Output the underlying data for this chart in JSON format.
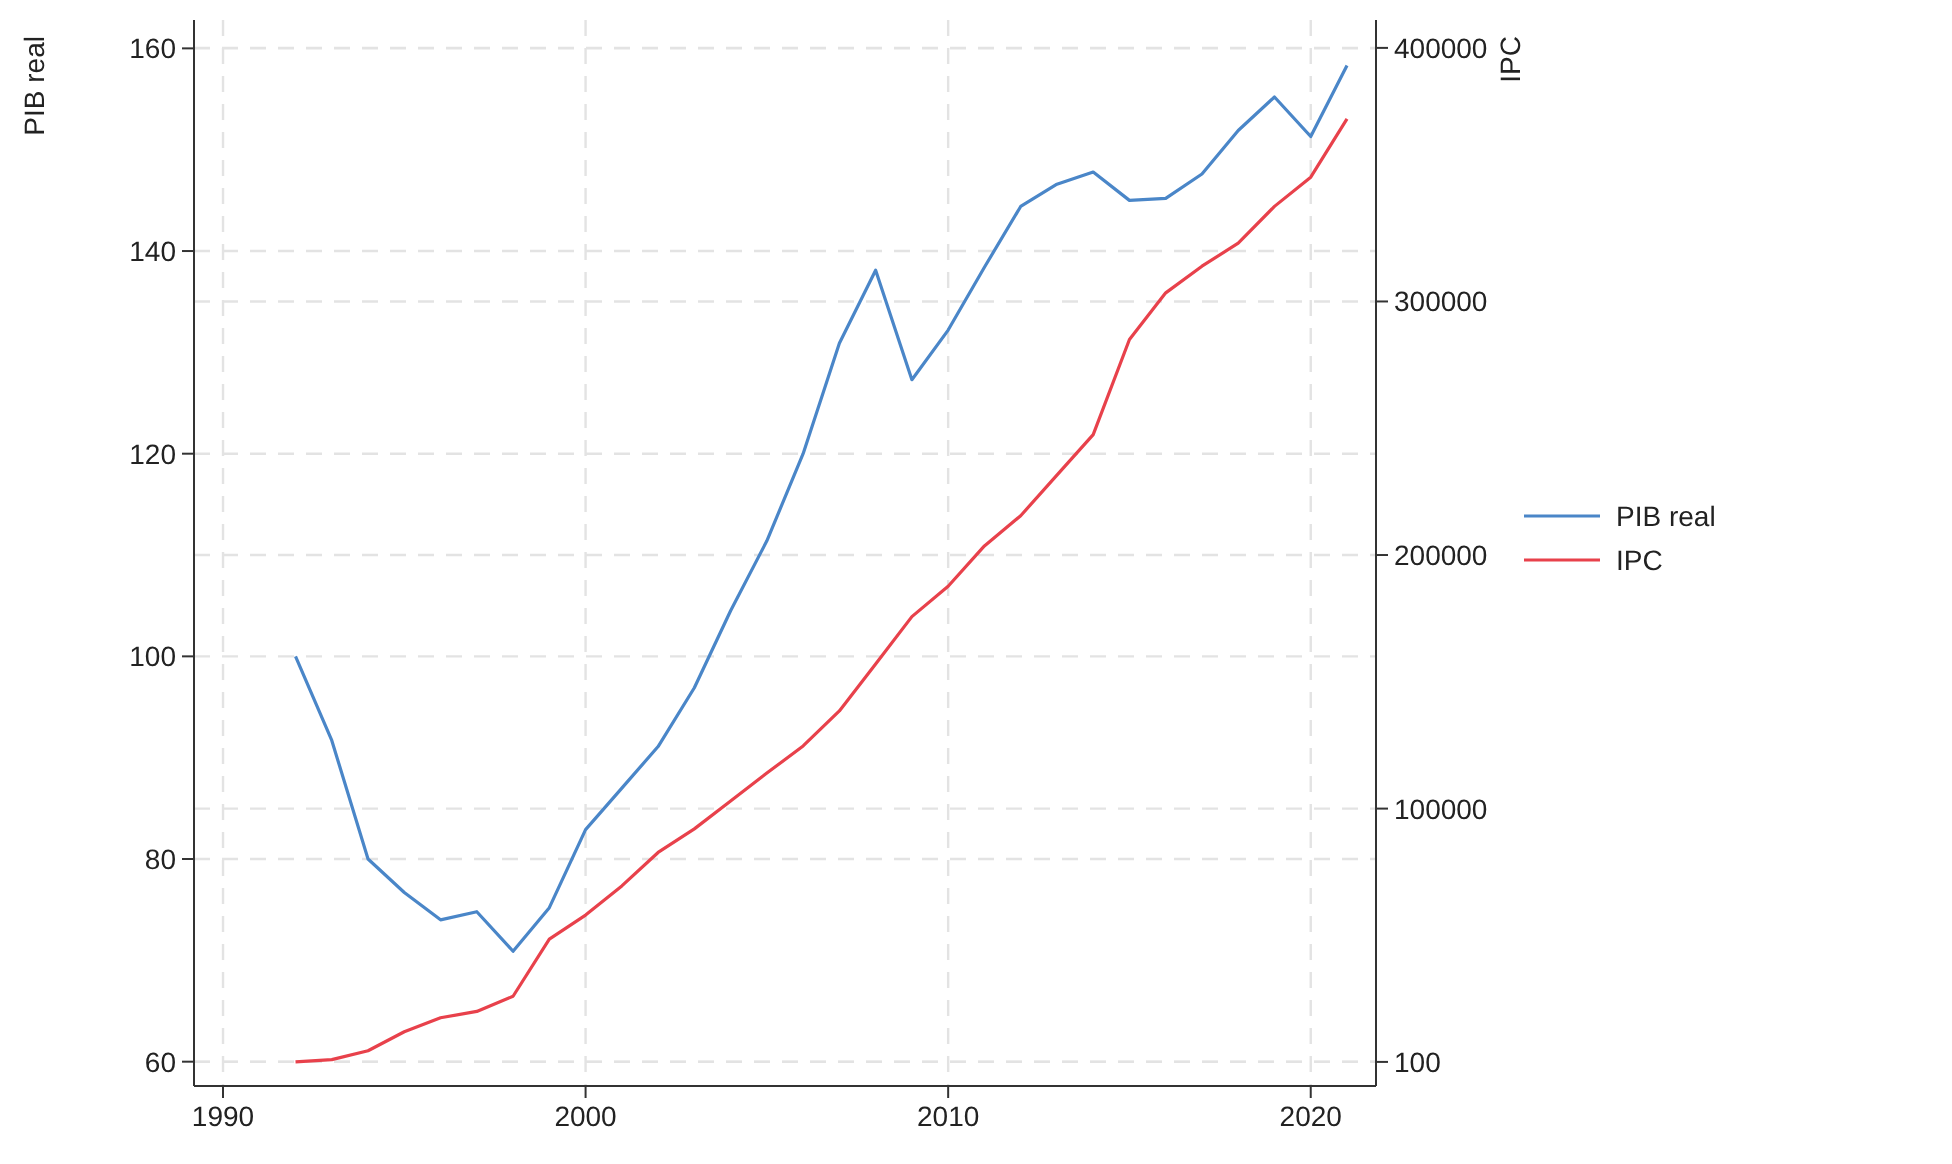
{
  "chart_data": {
    "type": "line",
    "ylabel": "PIB real",
    "y2label": "IPC",
    "x": [
      1992,
      1993,
      1994,
      1995,
      1996,
      1997,
      1998,
      1999,
      2000,
      2001,
      2002,
      2003,
      2004,
      2005,
      2006,
      2007,
      2008,
      2009,
      2010,
      2011,
      2012,
      2013,
      2014,
      2015,
      2016,
      2017,
      2018,
      2019,
      2020,
      2021
    ],
    "series": [
      {
        "name": "PIB real",
        "color": "#4a86c8",
        "values": [
          100,
          91.7,
          80,
          76.7,
          74,
          74.8,
          70.9,
          75.2,
          82.9,
          87,
          91.1,
          96.9,
          104.5,
          111.4,
          120,
          130.9,
          138.1,
          127.3,
          132.2,
          138.4,
          144.4,
          146.6,
          147.8,
          145,
          145.2,
          147.6,
          151.9,
          155.2,
          151.3,
          158.3
        ]
      },
      {
        "name": "IPC",
        "color": "#e8414b",
        "axis": "y2",
        "values": [
          100,
          1000,
          4500,
          12000,
          17500,
          20000,
          26000,
          48500,
          58000,
          69500,
          82700,
          92000,
          103000,
          114000,
          124700,
          138500,
          157000,
          175700,
          187700,
          203600,
          215500,
          231500,
          247500,
          285000,
          303400,
          313900,
          323000,
          337500,
          349000,
          372000
        ]
      }
    ],
    "xlim": [
      1989.2,
      2021.8
    ],
    "xticks": [
      1990,
      2000,
      2010,
      2020
    ],
    "ylim": [
      57.6,
      162.8
    ],
    "yticks": [
      60,
      80,
      100,
      120,
      140,
      160
    ],
    "y2lim": [
      -9400,
      411000
    ],
    "y2ticks": [
      100,
      100000,
      200000,
      300000,
      400000
    ],
    "grid": true,
    "legend": "right",
    "line_style": "solid"
  }
}
